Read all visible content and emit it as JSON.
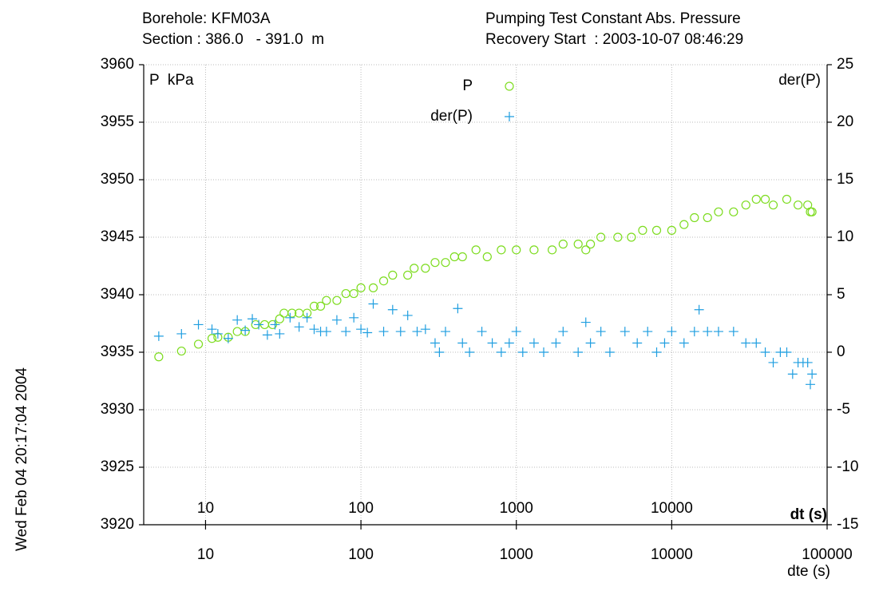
{
  "chart_data": {
    "type": "scatter",
    "title_left": [
      "Borehole: KFM03A",
      "Section : 386.0   - 391.0  m"
    ],
    "title_right": [
      "Pumping Test Constant Abs. Pressure",
      "Recovery Start  : 2003-10-07 08:46:29"
    ],
    "ylabel": "P  kPa",
    "y2label": "der(P)",
    "xlabel": "dte (s)",
    "dt_label": "dt (s)",
    "timestamp": "Wed Feb 04 20:17:04 2004",
    "xscale": "log",
    "grid": true,
    "xlim": [
      4,
      100000
    ],
    "xticks": [
      10,
      100,
      1000,
      10000,
      100000
    ],
    "dt_ticks": [
      10,
      100,
      1000,
      10000
    ],
    "ylim": [
      3920,
      3960
    ],
    "yticks": [
      3920,
      3925,
      3930,
      3935,
      3940,
      3945,
      3950,
      3955,
      3960
    ],
    "y2lim": [
      -15,
      25
    ],
    "y2ticks": [
      -15,
      -10,
      -5,
      0,
      5,
      10,
      15,
      20,
      25
    ],
    "series": [
      {
        "name": "P",
        "color": "#7ddc1f",
        "marker": "circle",
        "x": [
          5,
          7,
          9,
          11,
          12,
          14,
          16,
          18,
          21,
          24,
          27,
          30,
          32,
          36,
          40,
          45,
          50,
          55,
          60,
          70,
          80,
          90,
          100,
          120,
          140,
          160,
          200,
          220,
          260,
          300,
          350,
          400,
          450,
          550,
          650,
          800,
          1000,
          1300,
          1700,
          2000,
          2500,
          2800,
          3000,
          3500,
          4500,
          5500,
          6500,
          8000,
          10000,
          12000,
          14000,
          17000,
          20000,
          25000,
          30000,
          35000,
          40000,
          45000,
          55000,
          65000,
          75000,
          78000,
          80000
        ],
        "values": [
          3934.6,
          3935.1,
          3935.7,
          3936.2,
          3936.3,
          3936.3,
          3936.8,
          3936.8,
          3937.4,
          3937.4,
          3937.4,
          3937.9,
          3938.4,
          3938.4,
          3938.4,
          3938.4,
          3939.0,
          3939.0,
          3939.5,
          3939.5,
          3940.1,
          3940.1,
          3940.6,
          3940.6,
          3941.2,
          3941.7,
          3941.7,
          3942.3,
          3942.3,
          3942.8,
          3942.8,
          3943.3,
          3943.3,
          3943.9,
          3943.3,
          3943.9,
          3943.9,
          3943.9,
          3943.9,
          3944.4,
          3944.4,
          3943.9,
          3944.4,
          3945.0,
          3945.0,
          3945.0,
          3945.6,
          3945.6,
          3945.6,
          3946.1,
          3946.7,
          3946.7,
          3947.2,
          3947.2,
          3947.8,
          3948.3,
          3948.3,
          3947.8,
          3948.3,
          3947.8,
          3947.8,
          3947.2,
          3947.2
        ]
      },
      {
        "name": "der(P)",
        "color": "#1f9ee0",
        "marker": "plus",
        "axis": "y2",
        "x": [
          5,
          7,
          9,
          11,
          12,
          14,
          16,
          18,
          20,
          22,
          25,
          28,
          30,
          35,
          40,
          45,
          50,
          55,
          60,
          70,
          80,
          90,
          100,
          110,
          120,
          140,
          160,
          180,
          200,
          230,
          260,
          300,
          320,
          350,
          420,
          450,
          500,
          600,
          700,
          800,
          900,
          1000,
          1100,
          1300,
          1500,
          1800,
          2000,
          2500,
          2800,
          3000,
          3500,
          4000,
          5000,
          6000,
          7000,
          8000,
          9000,
          10000,
          12000,
          14000,
          15000,
          17000,
          20000,
          25000,
          30000,
          35000,
          40000,
          45000,
          50000,
          55000,
          60000,
          65000,
          70000,
          75000,
          78000,
          80000
        ],
        "values": [
          1.4,
          1.6,
          2.4,
          2.0,
          1.6,
          1.2,
          2.8,
          1.9,
          2.9,
          2.4,
          1.5,
          2.4,
          1.6,
          3.0,
          2.2,
          3.0,
          2.0,
          1.8,
          1.8,
          2.8,
          1.8,
          3.0,
          2.0,
          1.7,
          4.2,
          1.8,
          3.7,
          1.8,
          3.2,
          1.8,
          2.0,
          0.8,
          0,
          1.8,
          3.8,
          0.8,
          0,
          1.8,
          0.8,
          0,
          0.8,
          1.8,
          0,
          0.8,
          0,
          0.8,
          1.8,
          0,
          2.6,
          0.8,
          1.8,
          0,
          1.8,
          0.8,
          1.8,
          0,
          0.8,
          1.8,
          0.8,
          1.8,
          3.7,
          1.8,
          1.8,
          1.8,
          0.8,
          0.8,
          0,
          -0.9,
          0,
          0,
          -1.9,
          -0.9,
          -0.9,
          -0.9,
          -2.8,
          -1.9
        ]
      }
    ]
  }
}
